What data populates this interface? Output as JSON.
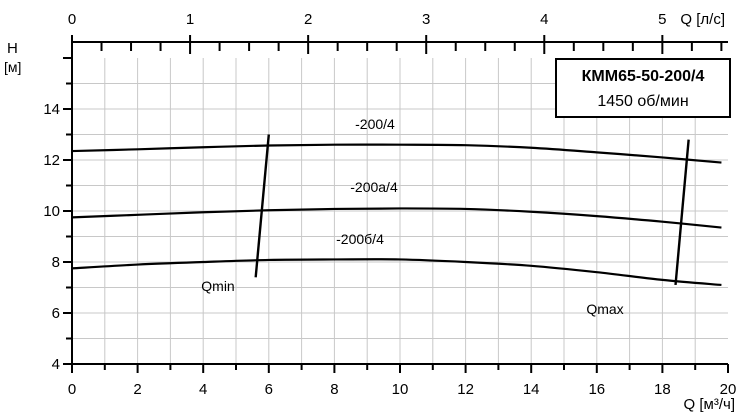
{
  "chart_data": {
    "type": "line",
    "title": "КММ65-50-200/4",
    "subtitle": "1450 об/мин",
    "xlabel": "Q [м³/ч]",
    "x2label": "Q [л/с]",
    "ylabel_line1": "H",
    "ylabel_line2": "[м]",
    "xlim": [
      0,
      20
    ],
    "ylim": [
      4,
      16
    ],
    "x2lim": [
      0,
      5.556
    ],
    "grid": true,
    "x_ticks": [
      "0",
      "2",
      "4",
      "6",
      "8",
      "10",
      "12",
      "14",
      "16",
      "18",
      "20"
    ],
    "y_ticks": [
      "4",
      "6",
      "8",
      "10",
      "12",
      "14"
    ],
    "x2_ticks": [
      "0",
      "1",
      "2",
      "3",
      "4",
      "5"
    ],
    "series": [
      {
        "name": "-200/4",
        "x": [
          0,
          2,
          4,
          6,
          8,
          10,
          12,
          14,
          16,
          18,
          19.8
        ],
        "y": [
          12.35,
          12.42,
          12.5,
          12.57,
          12.6,
          12.6,
          12.58,
          12.48,
          12.3,
          12.1,
          11.9
        ]
      },
      {
        "name": "-200а/4",
        "x": [
          0,
          2,
          4,
          6,
          8,
          10,
          12,
          14,
          16,
          18,
          19.8
        ],
        "y": [
          9.75,
          9.85,
          9.95,
          10.03,
          10.08,
          10.1,
          10.08,
          9.97,
          9.8,
          9.58,
          9.35
        ]
      },
      {
        "name": "-200б/4",
        "x": [
          0,
          2,
          4,
          6,
          8,
          10,
          12,
          14,
          16,
          18,
          19.8
        ],
        "y": [
          7.75,
          7.9,
          8.0,
          8.08,
          8.1,
          8.1,
          8.0,
          7.85,
          7.6,
          7.3,
          7.1
        ]
      }
    ],
    "limit_lines": [
      {
        "name": "Qmin",
        "x": [
          5.6,
          6.0
        ],
        "y": [
          7.4,
          13.0
        ]
      },
      {
        "name": "Qmax",
        "x": [
          18.4,
          18.8
        ],
        "y": [
          7.1,
          12.8
        ]
      }
    ]
  }
}
